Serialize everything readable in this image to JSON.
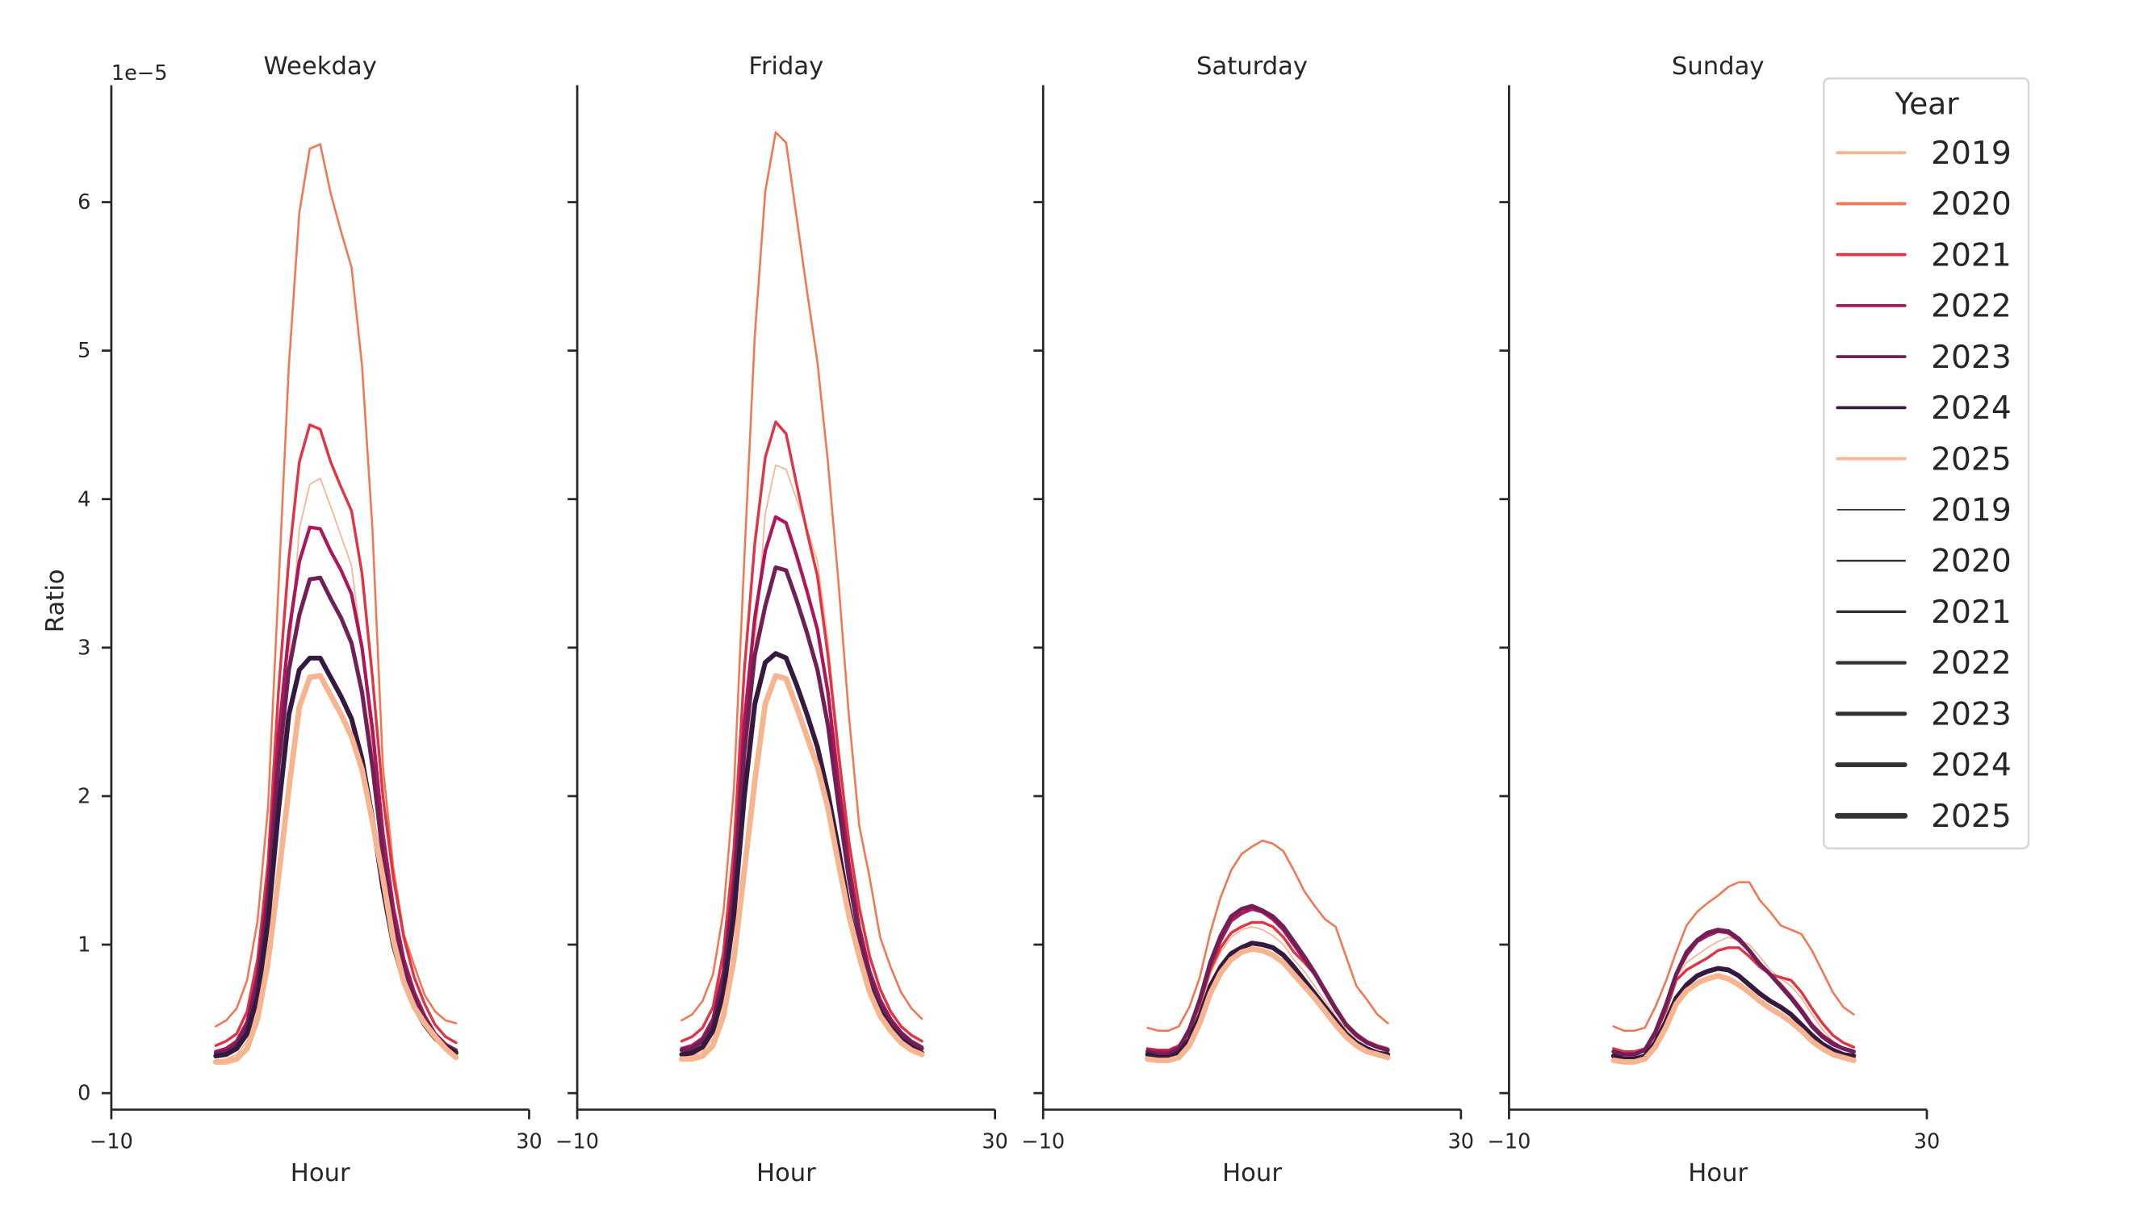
{
  "offset_text": "1e−5",
  "ylabel": "Ratio",
  "xlabel": "Hour",
  "xticks": [
    "−10",
    "30"
  ],
  "yticks": [
    "0",
    "1",
    "2",
    "3",
    "4",
    "5",
    "6"
  ],
  "legend": {
    "title": "Year",
    "hue_entries": [
      {
        "label": "2019",
        "color": "#f6b48f"
      },
      {
        "label": "2020",
        "color": "#f37651"
      },
      {
        "label": "2021",
        "color": "#e13342"
      },
      {
        "label": "2022",
        "color": "#ad1759"
      },
      {
        "label": "2023",
        "color": "#701f57"
      },
      {
        "label": "2024",
        "color": "#35193e"
      },
      {
        "label": "2025",
        "color": "#f6b48f"
      }
    ],
    "size_entries": [
      {
        "label": "2019",
        "color": "#333333"
      },
      {
        "label": "2020",
        "color": "#333333"
      },
      {
        "label": "2021",
        "color": "#333333"
      },
      {
        "label": "2022",
        "color": "#333333"
      },
      {
        "label": "2023",
        "color": "#333333"
      },
      {
        "label": "2024",
        "color": "#333333"
      },
      {
        "label": "2025",
        "color": "#333333"
      }
    ]
  },
  "chart_data": [
    {
      "type": "line",
      "title": "Weekday",
      "xlabel": "Hour",
      "ylabel": "Ratio",
      "y_scale_factor": "1e-5",
      "xlim": [
        -10,
        30
      ],
      "ylim": [
        -0.1,
        6.8
      ],
      "grid": false,
      "legend": "right",
      "x": [
        0,
        1,
        2,
        3,
        4,
        5,
        6,
        7,
        8,
        9,
        10,
        11,
        12,
        13,
        14,
        15,
        16,
        17,
        18,
        19,
        20,
        21,
        22,
        23
      ],
      "series": [
        {
          "name": "2019",
          "values": [
            0.22,
            0.23,
            0.26,
            0.35,
            0.6,
            1.1,
            1.9,
            2.9,
            3.8,
            4.1,
            4.14,
            3.95,
            3.75,
            3.55,
            3.0,
            2.3,
            1.55,
            1.05,
            0.78,
            0.6,
            0.48,
            0.38,
            0.31,
            0.26
          ]
        },
        {
          "name": "2020",
          "values": [
            0.45,
            0.49,
            0.57,
            0.76,
            1.16,
            1.92,
            3.4,
            4.9,
            5.93,
            6.36,
            6.39,
            6.06,
            5.8,
            5.56,
            4.9,
            3.8,
            2.2,
            1.52,
            1.07,
            0.86,
            0.66,
            0.55,
            0.49,
            0.47
          ]
        },
        {
          "name": "2021",
          "values": [
            0.32,
            0.35,
            0.4,
            0.55,
            0.9,
            1.55,
            2.7,
            3.6,
            4.25,
            4.5,
            4.47,
            4.25,
            4.08,
            3.92,
            3.5,
            2.8,
            2.0,
            1.45,
            1.05,
            0.78,
            0.6,
            0.46,
            0.38,
            0.34
          ]
        },
        {
          "name": "2022",
          "values": [
            0.28,
            0.3,
            0.35,
            0.48,
            0.8,
            1.4,
            2.4,
            3.1,
            3.58,
            3.81,
            3.8,
            3.65,
            3.52,
            3.36,
            3.0,
            2.45,
            1.75,
            1.25,
            0.9,
            0.68,
            0.52,
            0.4,
            0.33,
            0.29
          ]
        },
        {
          "name": "2023",
          "values": [
            0.27,
            0.28,
            0.33,
            0.45,
            0.75,
            1.3,
            2.2,
            2.85,
            3.22,
            3.46,
            3.47,
            3.33,
            3.2,
            3.03,
            2.7,
            2.2,
            1.6,
            1.15,
            0.85,
            0.64,
            0.5,
            0.39,
            0.32,
            0.28
          ]
        },
        {
          "name": "2024",
          "values": [
            0.25,
            0.26,
            0.3,
            0.4,
            0.65,
            1.15,
            1.9,
            2.55,
            2.85,
            2.93,
            2.93,
            2.8,
            2.67,
            2.52,
            2.25,
            1.85,
            1.38,
            1.0,
            0.75,
            0.58,
            0.46,
            0.37,
            0.31,
            0.27
          ]
        },
        {
          "name": "2025",
          "values": [
            0.21,
            0.21,
            0.23,
            0.3,
            0.5,
            0.88,
            1.45,
            2.05,
            2.6,
            2.8,
            2.81,
            2.68,
            2.55,
            2.4,
            2.18,
            1.83,
            1.45,
            1.03,
            0.75,
            0.58,
            0.47,
            0.38,
            0.3,
            0.24
          ]
        }
      ]
    },
    {
      "type": "line",
      "title": "Friday",
      "xlabel": "Hour",
      "ylabel": "",
      "y_scale_factor": "1e-5",
      "xlim": [
        -10,
        30
      ],
      "ylim": [
        -0.1,
        6.8
      ],
      "grid": false,
      "x": [
        0,
        1,
        2,
        3,
        4,
        5,
        6,
        7,
        8,
        9,
        10,
        11,
        12,
        13,
        14,
        15,
        16,
        17,
        18,
        19,
        20,
        21,
        22,
        23
      ],
      "series": [
        {
          "name": "2019",
          "values": [
            0.24,
            0.25,
            0.28,
            0.37,
            0.62,
            1.15,
            2.0,
            3.0,
            3.9,
            4.23,
            4.2,
            4.0,
            3.8,
            3.58,
            3.05,
            2.35,
            1.6,
            1.1,
            0.82,
            0.63,
            0.5,
            0.4,
            0.33,
            0.28
          ]
        },
        {
          "name": "2020",
          "values": [
            0.49,
            0.53,
            0.62,
            0.8,
            1.22,
            2.05,
            3.6,
            5.1,
            6.07,
            6.47,
            6.4,
            5.9,
            5.4,
            4.92,
            4.25,
            3.45,
            2.55,
            1.8,
            1.45,
            1.05,
            0.85,
            0.68,
            0.57,
            0.5
          ]
        },
        {
          "name": "2021",
          "values": [
            0.35,
            0.38,
            0.44,
            0.58,
            0.95,
            1.65,
            2.85,
            3.7,
            4.28,
            4.52,
            4.44,
            4.1,
            3.78,
            3.48,
            2.95,
            2.3,
            1.7,
            1.25,
            0.92,
            0.7,
            0.55,
            0.45,
            0.39,
            0.35
          ]
        },
        {
          "name": "2022",
          "values": [
            0.3,
            0.32,
            0.37,
            0.5,
            0.82,
            1.45,
            2.5,
            3.2,
            3.65,
            3.88,
            3.84,
            3.62,
            3.38,
            3.12,
            2.7,
            2.1,
            1.55,
            1.12,
            0.82,
            0.63,
            0.5,
            0.41,
            0.35,
            0.31
          ]
        },
        {
          "name": "2023",
          "values": [
            0.29,
            0.3,
            0.35,
            0.47,
            0.78,
            1.35,
            2.3,
            2.95,
            3.28,
            3.54,
            3.52,
            3.32,
            3.1,
            2.85,
            2.48,
            1.95,
            1.45,
            1.05,
            0.78,
            0.6,
            0.48,
            0.4,
            0.34,
            0.3
          ]
        },
        {
          "name": "2024",
          "values": [
            0.26,
            0.27,
            0.31,
            0.42,
            0.68,
            1.2,
            2.0,
            2.62,
            2.9,
            2.96,
            2.93,
            2.75,
            2.55,
            2.33,
            2.02,
            1.65,
            1.25,
            0.92,
            0.7,
            0.55,
            0.44,
            0.36,
            0.31,
            0.27
          ]
        },
        {
          "name": "2025",
          "values": [
            0.23,
            0.23,
            0.25,
            0.32,
            0.52,
            0.9,
            1.5,
            2.1,
            2.62,
            2.81,
            2.79,
            2.6,
            2.4,
            2.2,
            1.92,
            1.55,
            1.2,
            0.92,
            0.68,
            0.52,
            0.42,
            0.34,
            0.29,
            0.26
          ]
        }
      ]
    },
    {
      "type": "line",
      "title": "Saturday",
      "xlabel": "Hour",
      "ylabel": "",
      "y_scale_factor": "1e-5",
      "xlim": [
        -10,
        30
      ],
      "ylim": [
        -0.1,
        6.8
      ],
      "grid": false,
      "x": [
        0,
        1,
        2,
        3,
        4,
        5,
        6,
        7,
        8,
        9,
        10,
        11,
        12,
        13,
        14,
        15,
        16,
        17,
        18,
        19,
        20,
        21,
        22,
        23
      ],
      "series": [
        {
          "name": "2019",
          "values": [
            0.28,
            0.27,
            0.27,
            0.3,
            0.4,
            0.58,
            0.8,
            0.95,
            1.05,
            1.1,
            1.12,
            1.1,
            1.06,
            1.0,
            0.9,
            0.82,
            0.72,
            0.62,
            0.52,
            0.43,
            0.37,
            0.33,
            0.3,
            0.28
          ]
        },
        {
          "name": "2020",
          "values": [
            0.44,
            0.42,
            0.42,
            0.45,
            0.58,
            0.78,
            1.08,
            1.32,
            1.5,
            1.61,
            1.66,
            1.7,
            1.68,
            1.63,
            1.5,
            1.36,
            1.26,
            1.17,
            1.12,
            0.92,
            0.72,
            0.63,
            0.53,
            0.47
          ]
        },
        {
          "name": "2021",
          "values": [
            0.3,
            0.29,
            0.29,
            0.32,
            0.42,
            0.6,
            0.83,
            0.98,
            1.08,
            1.12,
            1.15,
            1.15,
            1.12,
            1.05,
            0.95,
            0.88,
            0.8,
            0.7,
            0.58,
            0.47,
            0.4,
            0.35,
            0.32,
            0.3
          ]
        },
        {
          "name": "2022",
          "values": [
            0.29,
            0.28,
            0.28,
            0.31,
            0.43,
            0.62,
            0.86,
            1.03,
            1.16,
            1.21,
            1.24,
            1.22,
            1.17,
            1.1,
            1.0,
            0.9,
            0.8,
            0.68,
            0.56,
            0.46,
            0.39,
            0.34,
            0.31,
            0.29
          ]
        },
        {
          "name": "2023",
          "values": [
            0.28,
            0.26,
            0.26,
            0.3,
            0.43,
            0.63,
            0.88,
            1.06,
            1.19,
            1.24,
            1.26,
            1.23,
            1.19,
            1.12,
            1.02,
            0.92,
            0.81,
            0.69,
            0.57,
            0.46,
            0.39,
            0.34,
            0.31,
            0.29
          ]
        },
        {
          "name": "2024",
          "values": [
            0.26,
            0.24,
            0.24,
            0.27,
            0.36,
            0.52,
            0.72,
            0.85,
            0.94,
            0.98,
            1.01,
            1.0,
            0.98,
            0.93,
            0.85,
            0.76,
            0.67,
            0.58,
            0.49,
            0.4,
            0.34,
            0.3,
            0.27,
            0.26
          ]
        },
        {
          "name": "2025",
          "values": [
            0.23,
            0.22,
            0.22,
            0.24,
            0.32,
            0.47,
            0.67,
            0.81,
            0.9,
            0.95,
            0.97,
            0.96,
            0.93,
            0.88,
            0.8,
            0.72,
            0.64,
            0.55,
            0.46,
            0.38,
            0.32,
            0.28,
            0.26,
            0.24
          ]
        }
      ]
    },
    {
      "type": "line",
      "title": "Sunday",
      "xlabel": "Hour",
      "ylabel": "",
      "y_scale_factor": "1e-5",
      "xlim": [
        -10,
        30
      ],
      "ylim": [
        -0.1,
        6.8
      ],
      "grid": false,
      "x": [
        0,
        1,
        2,
        3,
        4,
        5,
        6,
        7,
        8,
        9,
        10,
        11,
        12,
        13,
        14,
        15,
        16,
        17,
        18,
        19,
        20,
        21,
        22,
        23
      ],
      "series": [
        {
          "name": "2019",
          "values": [
            0.27,
            0.26,
            0.26,
            0.28,
            0.38,
            0.55,
            0.78,
            0.88,
            0.93,
            0.98,
            1.02,
            1.05,
            1.03,
            1.0,
            0.92,
            0.83,
            0.77,
            0.72,
            0.64,
            0.53,
            0.43,
            0.35,
            0.3,
            0.27
          ]
        },
        {
          "name": "2020",
          "values": [
            0.45,
            0.42,
            0.42,
            0.44,
            0.58,
            0.75,
            0.95,
            1.13,
            1.22,
            1.28,
            1.33,
            1.39,
            1.42,
            1.42,
            1.3,
            1.22,
            1.13,
            1.1,
            1.07,
            0.96,
            0.82,
            0.68,
            0.58,
            0.53
          ]
        },
        {
          "name": "2021",
          "values": [
            0.3,
            0.28,
            0.28,
            0.3,
            0.4,
            0.55,
            0.76,
            0.83,
            0.87,
            0.91,
            0.96,
            0.98,
            0.98,
            0.92,
            0.85,
            0.8,
            0.78,
            0.76,
            0.68,
            0.57,
            0.47,
            0.39,
            0.34,
            0.31
          ]
        },
        {
          "name": "2022",
          "values": [
            0.28,
            0.26,
            0.26,
            0.29,
            0.4,
            0.58,
            0.8,
            0.93,
            1.02,
            1.06,
            1.09,
            1.08,
            1.03,
            0.96,
            0.87,
            0.8,
            0.73,
            0.65,
            0.56,
            0.46,
            0.39,
            0.34,
            0.3,
            0.28
          ]
        },
        {
          "name": "2023",
          "values": [
            0.28,
            0.26,
            0.26,
            0.29,
            0.41,
            0.59,
            0.8,
            0.95,
            1.03,
            1.08,
            1.1,
            1.09,
            1.04,
            0.96,
            0.87,
            0.8,
            0.72,
            0.64,
            0.55,
            0.45,
            0.38,
            0.33,
            0.3,
            0.28
          ]
        },
        {
          "name": "2024",
          "values": [
            0.25,
            0.23,
            0.23,
            0.25,
            0.34,
            0.48,
            0.64,
            0.73,
            0.79,
            0.82,
            0.84,
            0.83,
            0.79,
            0.73,
            0.67,
            0.62,
            0.58,
            0.53,
            0.46,
            0.39,
            0.33,
            0.29,
            0.26,
            0.25
          ]
        },
        {
          "name": "2025",
          "values": [
            0.22,
            0.21,
            0.21,
            0.23,
            0.31,
            0.44,
            0.6,
            0.69,
            0.74,
            0.77,
            0.79,
            0.77,
            0.73,
            0.68,
            0.62,
            0.57,
            0.53,
            0.48,
            0.42,
            0.35,
            0.3,
            0.26,
            0.24,
            0.22
          ]
        }
      ]
    }
  ]
}
